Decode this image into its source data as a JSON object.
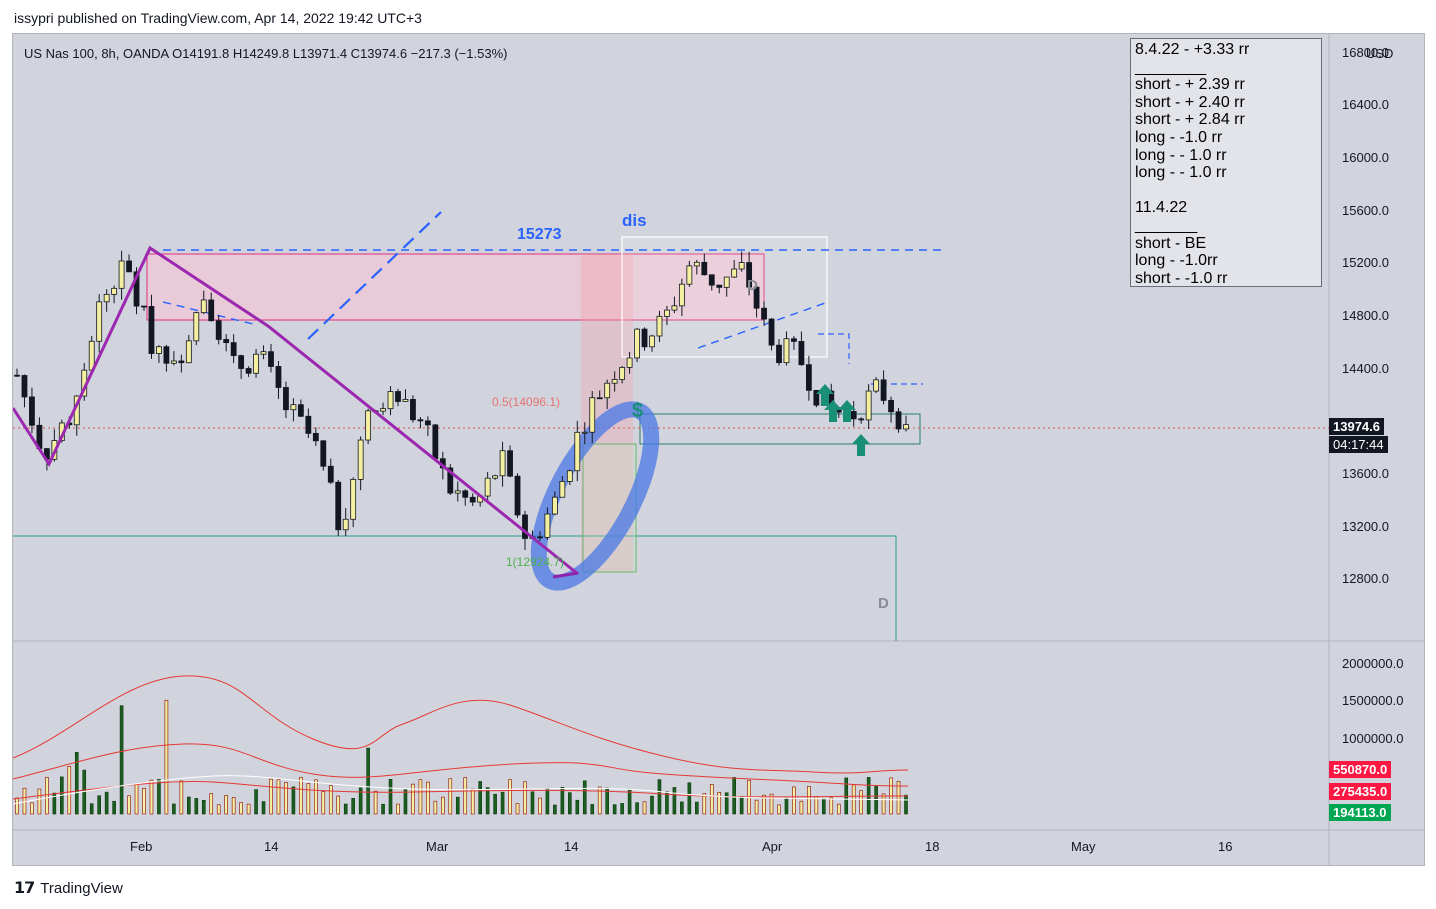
{
  "header": {
    "publish_line": "issypri published on TradingView.com, Apr 14, 2022 19:42 UTC+3"
  },
  "legend": {
    "text": "US Nas 100, 8h, OANDA  O14191.8  H14249.8  L13971.4  C13974.6  −217.3 (−1.53%)"
  },
  "currency": "USD",
  "notes": [
    "8.4.22 - +3.33 rr",
    "________",
    "short - + 2.39 rr",
    "short - + 2.40 rr",
    "short - + 2.84 rr",
    "long - -1.0 rr",
    "long - - 1.0 rr",
    "long - - 1.0 rr",
    "",
    "11.4.22",
    "_______",
    "short - BE",
    "long - -1.0rr",
    "short - -1.0 rr"
  ],
  "annotations": {
    "level_label": "15273",
    "dis_label": "dis",
    "fib_mid": "0.5(14096.1)",
    "fib_low": "1(12924.7)",
    "dollar": "$",
    "d_upper": "D",
    "d_lower": "D"
  },
  "price_tags": {
    "last_price": "13974.6",
    "countdown": "04:17:44",
    "vol_upper": "550870.0",
    "vol_mid": "275435.0",
    "vol_current": "194113.0"
  },
  "footer": {
    "brand": "TradingView"
  },
  "chart_data": {
    "type": "candlestick",
    "symbol": "US Nas 100",
    "interval": "8h",
    "price_axis": {
      "ticks": [
        16800,
        16400,
        16000,
        15600,
        15200,
        14800,
        14400,
        13600,
        13200,
        12800
      ],
      "ylim": [
        12400,
        16850
      ]
    },
    "volume_axis": {
      "ticks": [
        2000000,
        1500000,
        1000000
      ],
      "ylim": [
        0,
        2000000
      ]
    },
    "time_axis": {
      "labels": [
        "Feb",
        "14",
        "Mar",
        "14",
        "Apr",
        "18",
        "May",
        "16"
      ]
    },
    "close_path": [
      {
        "d": "Jan 24",
        "c": 14350
      },
      {
        "d": "Jan 25",
        "c": 13750
      },
      {
        "d": "Jan 27",
        "c": 14050
      },
      {
        "d": "Jan 31",
        "c": 14850
      },
      {
        "d": "Feb 2",
        "c": 15200
      },
      {
        "d": "Feb 4",
        "c": 14600
      },
      {
        "d": "Feb 7",
        "c": 14500
      },
      {
        "d": "Feb 10",
        "c": 15000
      },
      {
        "d": "Feb 14",
        "c": 14400
      },
      {
        "d": "Feb 16",
        "c": 14500
      },
      {
        "d": "Feb 18",
        "c": 14100
      },
      {
        "d": "Feb 22",
        "c": 13850
      },
      {
        "d": "Feb 24",
        "c": 13200
      },
      {
        "d": "Feb 28",
        "c": 14000
      },
      {
        "d": "Mar 2",
        "c": 14200
      },
      {
        "d": "Mar 4",
        "c": 14000
      },
      {
        "d": "Mar 7",
        "c": 13500
      },
      {
        "d": "Mar 9",
        "c": 13350
      },
      {
        "d": "Mar 11",
        "c": 13700
      },
      {
        "d": "Mar 14",
        "c": 13050
      },
      {
        "d": "Mar 15",
        "c": 13400
      },
      {
        "d": "Mar 17",
        "c": 14000
      },
      {
        "d": "Mar 21",
        "c": 14350
      },
      {
        "d": "Mar 23",
        "c": 14600
      },
      {
        "d": "Mar 25",
        "c": 14750
      },
      {
        "d": "Mar 29",
        "c": 15200
      },
      {
        "d": "Mar 31",
        "c": 15050
      },
      {
        "d": "Apr 4",
        "c": 15150
      },
      {
        "d": "Apr 6",
        "c": 14550
      },
      {
        "d": "Apr 8",
        "c": 14500
      },
      {
        "d": "Apr 11",
        "c": 14100
      },
      {
        "d": "Apr 12",
        "c": 14050
      },
      {
        "d": "Apr 13",
        "c": 14250
      },
      {
        "d": "Apr 14",
        "c": 13975
      }
    ],
    "levels": {
      "resistance": 15273,
      "fib_0_5": 14096.1,
      "fib_1": 12924.7,
      "last": 13974.6
    },
    "volume_levels": [
      550870.0,
      275435.0,
      194113.0
    ]
  }
}
